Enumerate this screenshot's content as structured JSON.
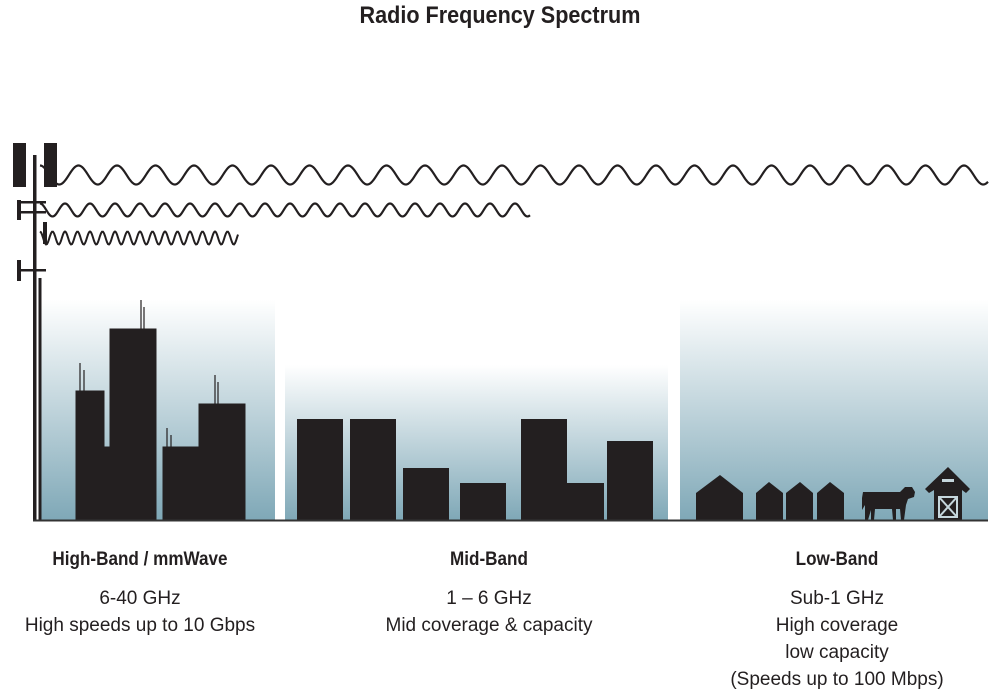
{
  "title": "Radio Frequency Spectrum",
  "colors": {
    "silhouette": "#231f20",
    "sky_top": "#ffffff",
    "sky_bottom": "#7fa8b7"
  },
  "bands": [
    {
      "name": "High-Band / mmWave",
      "lines": [
        "6-40 GHz",
        "High speeds up to 10 Gbps"
      ]
    },
    {
      "name": "Mid-Band",
      "lines": [
        "1 – 6 GHz",
        "Mid coverage & capacity"
      ]
    },
    {
      "name": "Low-Band",
      "lines": [
        "Sub-1 GHz",
        "High coverage",
        "low capacity",
        "(Speeds up to 100 Mbps)"
      ]
    }
  ],
  "icons": [
    "cell-tower-icon",
    "city-buildings-icon",
    "suburban-buildings-icon",
    "houses-icon",
    "cow-icon",
    "barn-icon"
  ]
}
